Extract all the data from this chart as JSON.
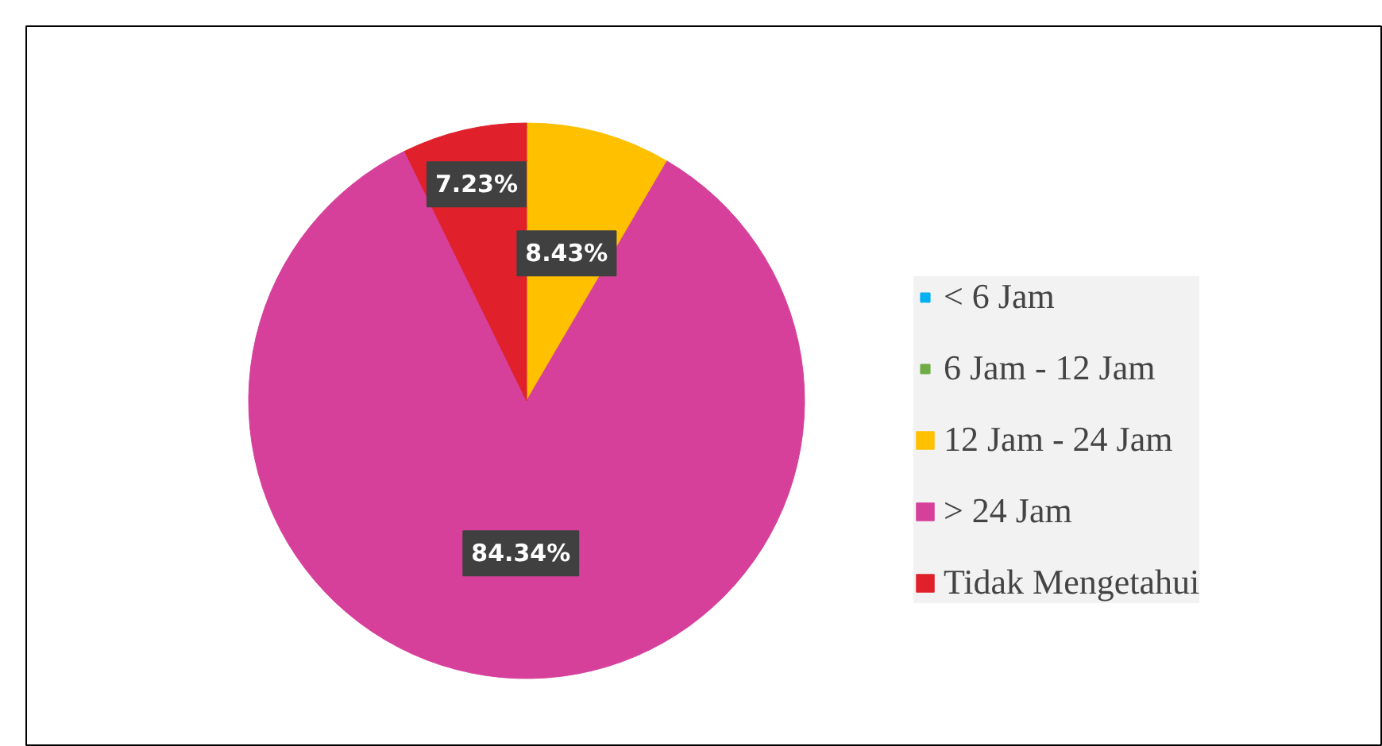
{
  "chart_data": {
    "type": "pie",
    "categories": [
      "< 6 Jam",
      "6 Jam - 12 Jam",
      "12 Jam - 24 Jam",
      "> 24 Jam",
      "Tidak Mengetahui"
    ],
    "values": [
      0,
      0,
      8.43,
      84.34,
      7.23
    ],
    "colors": [
      "#00b0f0",
      "#70ad47",
      "#ffc000",
      "#d6409a",
      "#e0202a"
    ],
    "value_labels": [
      null,
      null,
      "8.43%",
      "84.34%",
      "7.23%"
    ],
    "legend": "right"
  }
}
